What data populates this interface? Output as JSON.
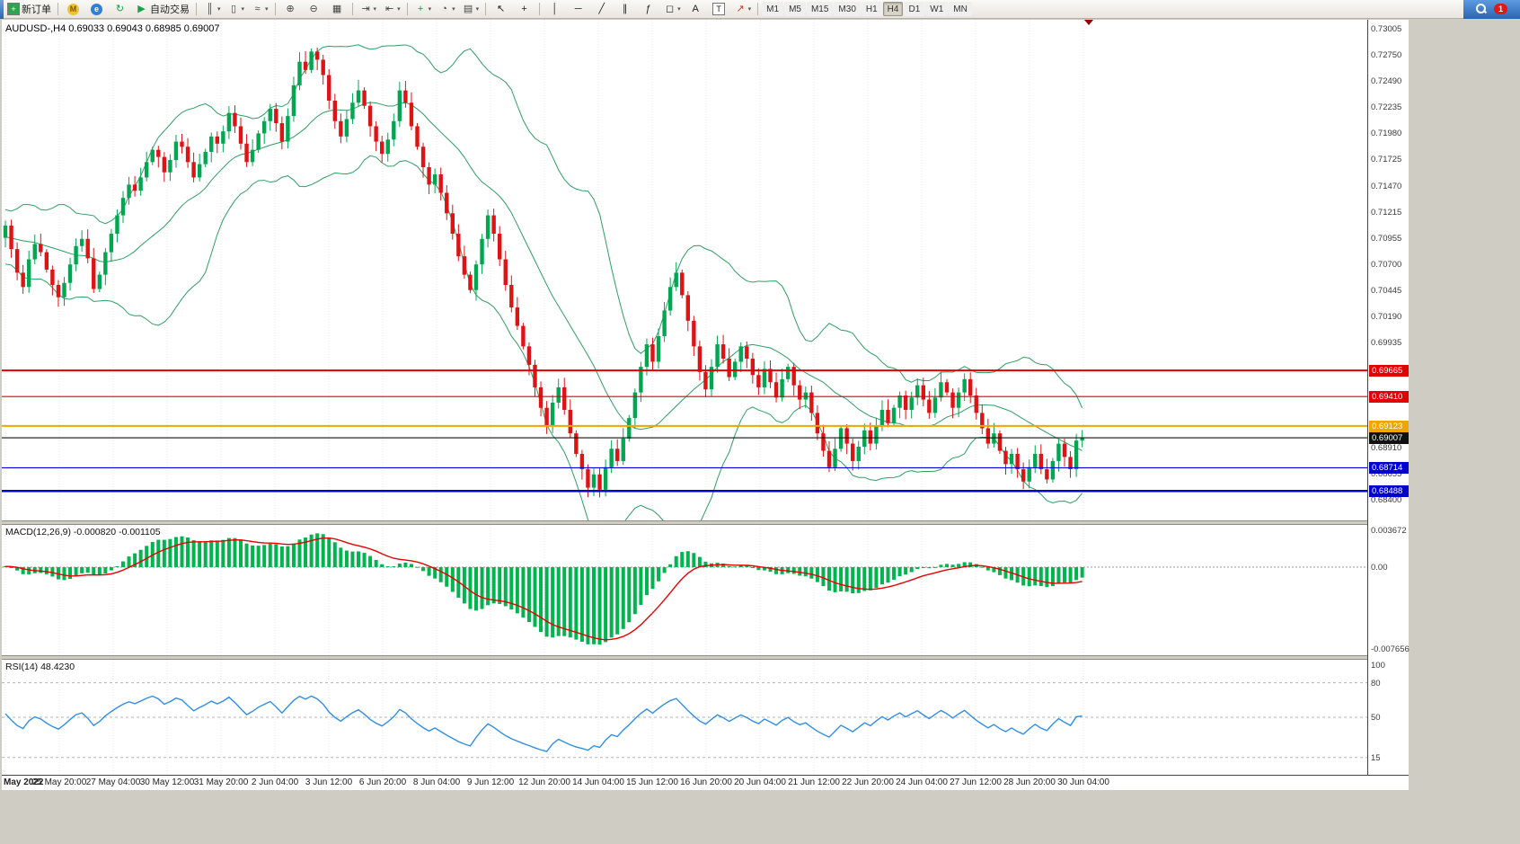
{
  "toolbar": {
    "items": [
      {
        "kind": "button",
        "name": "new-order-button",
        "icon": {
          "name": "new-order-icon",
          "glyph": "+",
          "fg": "#ffffff",
          "bg": "#2da44e",
          "shape": "box"
        },
        "label": "新订单"
      },
      {
        "kind": "sep"
      },
      {
        "kind": "icon",
        "name": "mql5-community-icon",
        "glyph": "M",
        "fg": "#7a5b00",
        "bg": "#f2c230",
        "shape": "circle"
      },
      {
        "kind": "icon",
        "name": "experts-icon",
        "glyph": "e",
        "fg": "#ffffff",
        "bg": "#2f7fd6",
        "shape": "circle"
      },
      {
        "kind": "icon",
        "name": "refresh-icon",
        "glyph": "↻",
        "fg": "#18a04a"
      },
      {
        "kind": "button",
        "name": "autotrade-button",
        "icon": {
          "name": "autotrade-play-icon",
          "glyph": "▶",
          "fg": "#18a04a"
        },
        "label": "自动交易"
      },
      {
        "kind": "sep"
      },
      {
        "kind": "icon",
        "name": "bar-chart-icon",
        "glyph": "║",
        "fg": "#444444",
        "dropdown": true
      },
      {
        "kind": "icon",
        "name": "candlestick-chart-icon",
        "glyph": "▯",
        "fg": "#444444",
        "dropdown": true
      },
      {
        "kind": "icon",
        "name": "line-chart-icon",
        "glyph": "≈",
        "fg": "#444444",
        "dropdown": true
      },
      {
        "kind": "sep"
      },
      {
        "kind": "icon",
        "name": "zoom-in-icon",
        "glyph": "⊕",
        "fg": "#444444"
      },
      {
        "kind": "icon",
        "name": "zoom-out-icon",
        "glyph": "⊖",
        "fg": "#444444"
      },
      {
        "kind": "icon",
        "name": "tile-windows-icon",
        "glyph": "▦",
        "fg": "#444444"
      },
      {
        "kind": "sep"
      },
      {
        "kind": "icon",
        "name": "auto-scroll-icon",
        "glyph": "⇥",
        "fg": "#444444",
        "dropdown": true
      },
      {
        "kind": "icon",
        "name": "chart-shift-icon",
        "glyph": "⇤",
        "fg": "#444444",
        "dropdown": true
      },
      {
        "kind": "sep"
      },
      {
        "kind": "icon",
        "name": "indicators-icon",
        "glyph": "+",
        "fg": "#18a04a",
        "dropdown": true
      },
      {
        "kind": "icon",
        "name": "periods-icon",
        "glyph": "◔",
        "fg": "#444444",
        "dropdown": true
      },
      {
        "kind": "icon",
        "name": "templates-icon",
        "glyph": "▤",
        "fg": "#444444",
        "dropdown": true
      },
      {
        "kind": "sep"
      },
      {
        "kind": "icon",
        "name": "cursor-icon",
        "glyph": "↖",
        "fg": "#222222"
      },
      {
        "kind": "icon",
        "name": "crosshair-icon",
        "glyph": "+",
        "fg": "#222222"
      },
      {
        "kind": "sep"
      },
      {
        "kind": "icon",
        "name": "vertical-line-icon",
        "glyph": "│",
        "fg": "#222222"
      },
      {
        "kind": "icon",
        "name": "horizontal-line-icon",
        "glyph": "─",
        "fg": "#222222"
      },
      {
        "kind": "icon",
        "name": "trendline-icon",
        "glyph": "╱",
        "fg": "#222222"
      },
      {
        "kind": "icon",
        "name": "channel-icon",
        "glyph": "∥",
        "fg": "#222222"
      },
      {
        "kind": "icon",
        "name": "fibonacci-icon",
        "glyph": "ƒ",
        "fg": "#222222"
      },
      {
        "kind": "icon",
        "name": "shapes-icon",
        "glyph": "◻",
        "fg": "#222222",
        "dropdown": true
      },
      {
        "kind": "icon",
        "name": "text-icon",
        "glyph": "A",
        "fg": "#222222"
      },
      {
        "kind": "icon",
        "name": "text-label-icon",
        "glyph": "T",
        "fg": "#222222",
        "shape": "box"
      },
      {
        "kind": "icon",
        "name": "arrows-icon",
        "glyph": "↗",
        "fg": "#c23b22",
        "dropdown": true
      },
      {
        "kind": "sep"
      },
      {
        "kind": "timeframes"
      },
      {
        "kind": "spacer"
      },
      {
        "kind": "rightpanel"
      }
    ],
    "timeframes": [
      "M1",
      "M5",
      "M15",
      "M30",
      "H1",
      "H4",
      "D1",
      "W1",
      "MN"
    ],
    "active_timeframe": "H4",
    "notification_count": "1"
  },
  "chart": {
    "header_text": "AUDUSD-,H4  0.69033 0.69043 0.68985 0.69007",
    "symbol": "AUDUSD-",
    "timeframe": "H4",
    "price_axis_labels": [
      "0.73005",
      "0.72750",
      "0.72490",
      "0.72235",
      "0.71980",
      "0.71725",
      "0.71470",
      "0.71215",
      "0.70955",
      "0.70700",
      "0.70445",
      "0.70190",
      "0.69935",
      "0.68910",
      "0.68655",
      "0.68400"
    ],
    "hlines": [
      {
        "price": 0.69665,
        "color": "#e00000",
        "thickness": 2,
        "badge": "0.69665"
      },
      {
        "price": 0.6941,
        "color": "#e00000",
        "thickness": 1.2,
        "badge": "0.69410"
      },
      {
        "price": 0.69123,
        "color": "#f0a500",
        "thickness": 2,
        "badge": "0.69123"
      },
      {
        "price": 0.69007,
        "color": "#111111",
        "thickness": 1.2,
        "badge": "0.69007"
      },
      {
        "price": 0.68714,
        "color": "#0000cc",
        "thickness": 1.2,
        "badge": "0.68714"
      },
      {
        "price": 0.68488,
        "color": "#0000cc",
        "thickness": 2.5,
        "badge": "0.68488"
      }
    ]
  },
  "macd_panel": {
    "label": "MACD(12,26,9) -0.000820 -0.001105",
    "macd_value": "-0.000820",
    "signal_value": "-0.001105",
    "axis_labels": [
      {
        "text": "0.003672",
        "value": 0.003672
      },
      {
        "text": "0.00",
        "value": 0
      },
      {
        "text": "-0.007656",
        "value": -0.007656
      }
    ],
    "histogram_color": "#00b44e",
    "signal_color": "#e80000"
  },
  "rsi_panel": {
    "label": "RSI(14) 48.4230",
    "rsi_value": "48.4230",
    "axis_labels": [
      {
        "text": "100",
        "value": 100
      },
      {
        "text": "80",
        "value": 80
      },
      {
        "text": "50",
        "value": 50
      },
      {
        "text": "15",
        "value": 15
      }
    ],
    "levels": [
      80,
      50,
      15
    ],
    "line_color": "#2f8fe8"
  },
  "time_axis": [
    "May 2022",
    "25 May 20:00",
    "27 May 04:00",
    "30 May 12:00",
    "31 May 20:00",
    "2 Jun 04:00",
    "3 Jun 12:00",
    "6 Jun 20:00",
    "8 Jun 04:00",
    "9 Jun 12:00",
    "12 Jun 20:00",
    "14 Jun 04:00",
    "15 Jun 12:00",
    "16 Jun 20:00",
    "20 Jun 04:00",
    "21 Jun 12:00",
    "22 Jun 20:00",
    "24 Jun 04:00",
    "27 Jun 12:00",
    "28 Jun 20:00",
    "30 Jun 04:00"
  ],
  "chart_data": {
    "type": "candlestick",
    "symbol": "AUDUSD",
    "timeframe": "H4",
    "ohlc_display": {
      "open": "0.69033",
      "high": "0.69043",
      "low": "0.68985",
      "close": "0.69007"
    },
    "bid": 0.69007,
    "price_range": [
      0.682,
      0.7309
    ],
    "warmup_closes": [
      0.7095,
      0.711,
      0.7088,
      0.7075,
      0.7092,
      0.7105,
      0.7118,
      0.71,
      0.7085,
      0.7072,
      0.709,
      0.7108,
      0.712,
      0.7102,
      0.7086,
      0.7095,
      0.7112,
      0.7098,
      0.708,
      0.7096
    ],
    "closes": [
      0.7108,
      0.7085,
      0.7062,
      0.7048,
      0.7075,
      0.709,
      0.7082,
      0.7065,
      0.705,
      0.7038,
      0.7052,
      0.707,
      0.7088,
      0.7095,
      0.7076,
      0.7046,
      0.706,
      0.7082,
      0.71,
      0.7118,
      0.7135,
      0.7148,
      0.7142,
      0.7155,
      0.717,
      0.7182,
      0.7175,
      0.716,
      0.7172,
      0.719,
      0.7185,
      0.717,
      0.7155,
      0.7168,
      0.718,
      0.7195,
      0.7188,
      0.72,
      0.7218,
      0.7205,
      0.7188,
      0.717,
      0.7182,
      0.7198,
      0.721,
      0.7222,
      0.7208,
      0.719,
      0.7215,
      0.7245,
      0.7268,
      0.726,
      0.7278,
      0.727,
      0.7255,
      0.723,
      0.721,
      0.7195,
      0.7212,
      0.7228,
      0.724,
      0.7225,
      0.7205,
      0.719,
      0.7178,
      0.7192,
      0.721,
      0.724,
      0.7228,
      0.7205,
      0.7185,
      0.7165,
      0.7148,
      0.7158,
      0.714,
      0.712,
      0.71,
      0.7078,
      0.706,
      0.7045,
      0.707,
      0.7095,
      0.7118,
      0.71,
      0.7075,
      0.705,
      0.7028,
      0.701,
      0.699,
      0.6972,
      0.695,
      0.693,
      0.6912,
      0.6935,
      0.695,
      0.6928,
      0.6905,
      0.6885,
      0.687,
      0.6852,
      0.6865,
      0.685,
      0.6872,
      0.689,
      0.6878,
      0.69,
      0.692,
      0.6945,
      0.697,
      0.6992,
      0.6975,
      0.7,
      0.7025,
      0.7048,
      0.7062,
      0.704,
      0.7015,
      0.699,
      0.6965,
      0.6948,
      0.697,
      0.6992,
      0.6978,
      0.696,
      0.6975,
      0.699,
      0.6978,
      0.6962,
      0.695,
      0.6968,
      0.6955,
      0.694,
      0.6958,
      0.697,
      0.6952,
      0.6938,
      0.6945,
      0.6925,
      0.6905,
      0.6888,
      0.6872,
      0.689,
      0.691,
      0.6895,
      0.6878,
      0.6892,
      0.6908,
      0.6895,
      0.6912,
      0.6928,
      0.6915,
      0.693,
      0.6942,
      0.6928,
      0.694,
      0.6952,
      0.6938,
      0.6925,
      0.694,
      0.6955,
      0.6945,
      0.693,
      0.6945,
      0.6958,
      0.6942,
      0.6925,
      0.691,
      0.6895,
      0.6905,
      0.6888,
      0.6875,
      0.6885,
      0.687,
      0.6858,
      0.6872,
      0.6885,
      0.687,
      0.686,
      0.6878,
      0.6895,
      0.6882,
      0.687,
      0.6898,
      0.69007
    ],
    "indicators": [
      {
        "type": "bollinger",
        "period": 20,
        "deviation": 2,
        "color": "#2f9e63"
      },
      {
        "type": "macd",
        "fast": 12,
        "slow": 26,
        "signal": 9,
        "range": [
          -0.007656,
          0.003672
        ]
      },
      {
        "type": "rsi",
        "period": 14
      }
    ],
    "candle_up_color": "#00a650",
    "candle_down_color": "#dc1414"
  }
}
